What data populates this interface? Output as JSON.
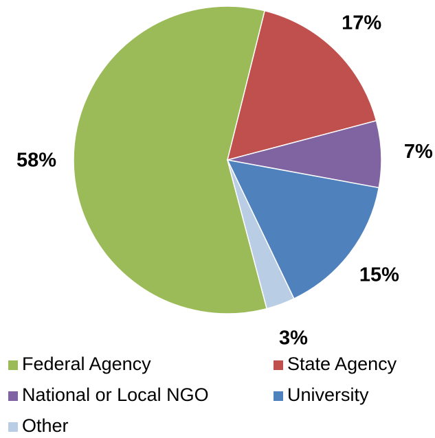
{
  "chart_data": {
    "type": "pie",
    "categories": [
      "Federal Agency",
      "State Agency",
      "National or Local NGO",
      "University",
      "Other"
    ],
    "values": [
      58,
      17,
      7,
      15,
      3
    ],
    "value_labels": [
      "58%",
      "17%",
      "7%",
      "15%",
      "3%"
    ],
    "colors": [
      "#9bbb59",
      "#c0504d",
      "#8064a2",
      "#4f81bd",
      "#b9cde5"
    ],
    "legend": "bottom"
  }
}
